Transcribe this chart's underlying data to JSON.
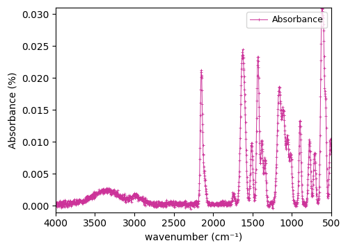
{
  "line_color": "#CC3399",
  "marker": "+",
  "markersize": 3,
  "linewidth": 0.7,
  "markeredgewidth": 0.6,
  "xlabel": "wavenumber (cm⁻¹)",
  "ylabel": "Absorbance (%)",
  "legend_label": "Absorbance",
  "xlim": [
    4000,
    500
  ],
  "ylim": [
    -0.001,
    0.031
  ],
  "yticks": [
    0.0,
    0.005,
    0.01,
    0.015,
    0.02,
    0.025,
    0.03
  ],
  "xticks": [
    4000,
    3500,
    3000,
    2500,
    2000,
    1500,
    1000,
    500
  ],
  "figsize": [
    5.0,
    3.6
  ],
  "dpi": 100
}
